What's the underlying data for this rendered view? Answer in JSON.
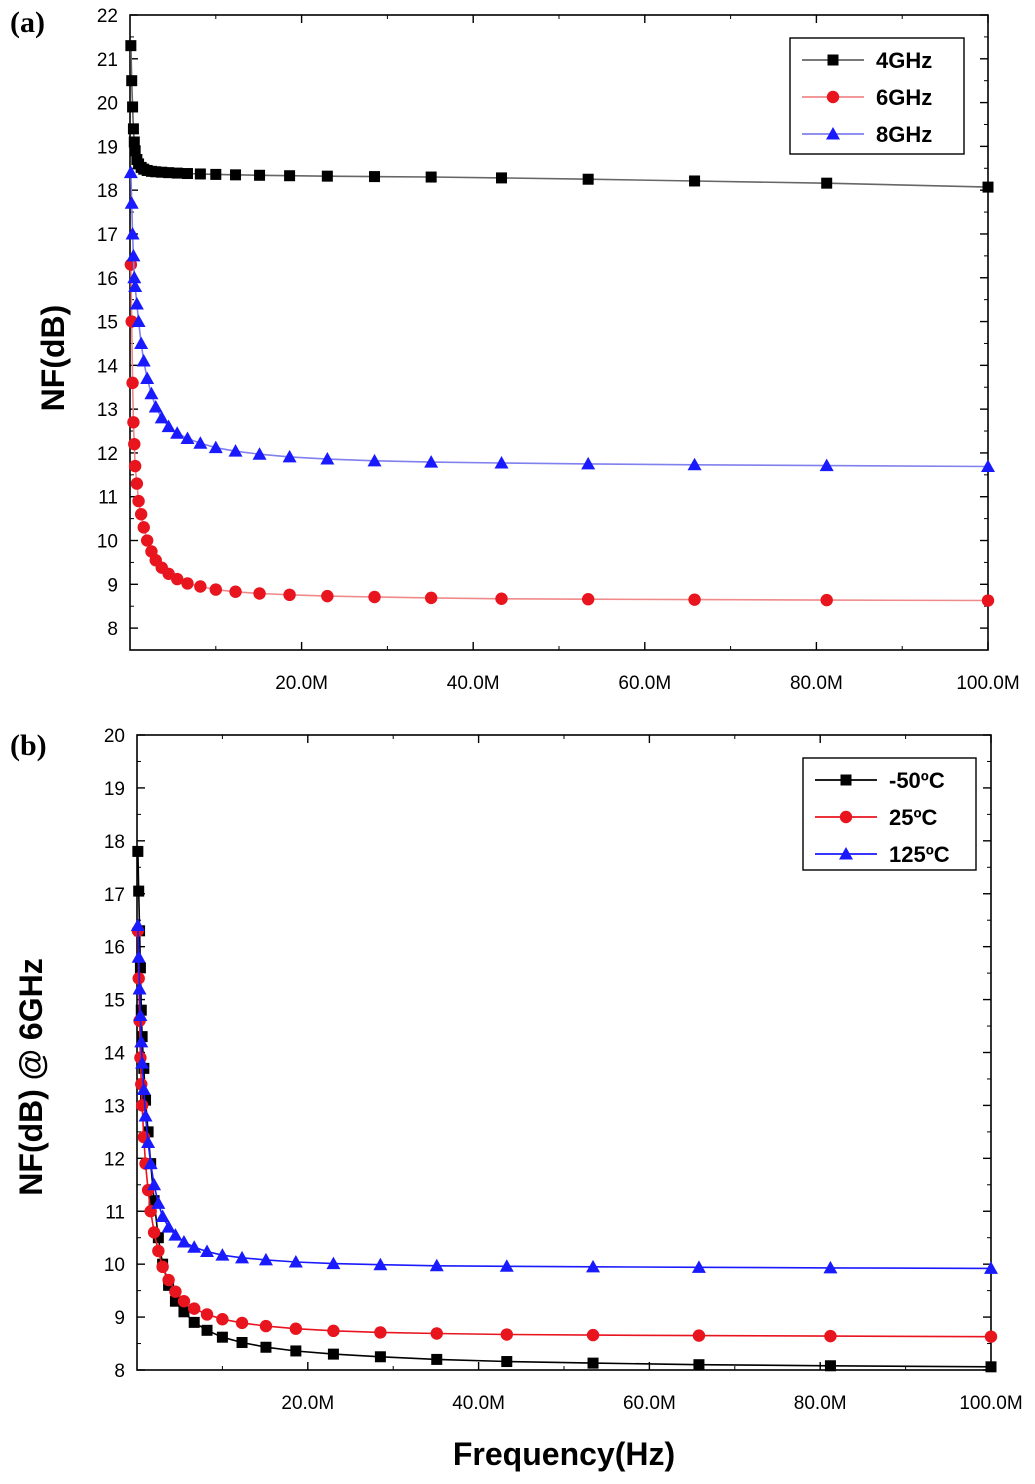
{
  "chart_data": [
    {
      "panel_label": "(a)",
      "type": "line",
      "title": "",
      "xlabel": "",
      "ylabel": "NF(dB)",
      "xlim": [
        0,
        100000000
      ],
      "ylim": [
        7.5,
        22
      ],
      "yticks": [
        8,
        9,
        10,
        11,
        12,
        13,
        14,
        15,
        16,
        17,
        18,
        19,
        20,
        21,
        22
      ],
      "xticks": [
        20000000,
        40000000,
        60000000,
        80000000,
        100000000
      ],
      "xtick_labels": [
        "20.0M",
        "40.0M",
        "60.0M",
        "80.0M",
        "100.0M"
      ],
      "legend_position": "top-right",
      "grid": false,
      "series": [
        {
          "name": "4GHz",
          "color": "#000000",
          "line_color": "#666666",
          "marker": "square",
          "x": [
            100000,
            200000,
            300000,
            400000,
            500000,
            600000,
            800000,
            1000000,
            1300000,
            1600000,
            2000000,
            2500000,
            3000000,
            3700000,
            4500000,
            5500000,
            6700000,
            8200000,
            10000000,
            12300000,
            15100000,
            18600000,
            23000000,
            28500000,
            35100000,
            43300000,
            53400000,
            65800000,
            81200000,
            100000000
          ],
          "y": [
            21.3,
            20.5,
            19.9,
            19.4,
            19.1,
            18.9,
            18.7,
            18.6,
            18.52,
            18.48,
            18.45,
            18.43,
            18.42,
            18.41,
            18.4,
            18.39,
            18.38,
            18.37,
            18.36,
            18.35,
            18.34,
            18.33,
            18.32,
            18.31,
            18.3,
            18.28,
            18.25,
            18.21,
            18.16,
            18.07
          ]
        },
        {
          "name": "6GHz",
          "color": "#e8141e",
          "line_color": "#f08a8a",
          "marker": "circle",
          "x": [
            100000,
            200000,
            300000,
            400000,
            500000,
            600000,
            800000,
            1000000,
            1300000,
            1600000,
            2000000,
            2500000,
            3000000,
            3700000,
            4500000,
            5500000,
            6700000,
            8200000,
            10000000,
            12300000,
            15100000,
            18600000,
            23000000,
            28500000,
            35100000,
            43300000,
            53400000,
            65800000,
            81200000,
            100000000
          ],
          "y": [
            16.3,
            15.0,
            13.6,
            12.7,
            12.2,
            11.7,
            11.3,
            10.9,
            10.6,
            10.3,
            10.0,
            9.75,
            9.55,
            9.38,
            9.24,
            9.12,
            9.02,
            8.95,
            8.88,
            8.83,
            8.79,
            8.76,
            8.73,
            8.71,
            8.69,
            8.67,
            8.66,
            8.65,
            8.64,
            8.63
          ]
        },
        {
          "name": "8GHz",
          "color": "#1a1aff",
          "line_color": "#8080ee",
          "marker": "triangle",
          "x": [
            100000,
            200000,
            300000,
            400000,
            500000,
            600000,
            800000,
            1000000,
            1300000,
            1600000,
            2000000,
            2500000,
            3000000,
            3700000,
            4500000,
            5500000,
            6700000,
            8200000,
            10000000,
            12300000,
            15100000,
            18600000,
            23000000,
            28500000,
            35100000,
            43300000,
            53400000,
            65800000,
            81200000,
            100000000
          ],
          "y": [
            18.4,
            17.7,
            17.0,
            16.5,
            16.0,
            15.8,
            15.4,
            15.0,
            14.5,
            14.1,
            13.7,
            13.35,
            13.05,
            12.8,
            12.6,
            12.45,
            12.33,
            12.22,
            12.12,
            12.04,
            11.97,
            11.91,
            11.86,
            11.82,
            11.79,
            11.77,
            11.75,
            11.73,
            11.71,
            11.69
          ]
        }
      ]
    },
    {
      "panel_label": "(b)",
      "type": "line",
      "title": "",
      "xlabel": "Frequency(Hz)",
      "ylabel": "NF(dB) @ 6GHz",
      "xlim": [
        0,
        100000000
      ],
      "ylim": [
        8,
        20
      ],
      "yticks": [
        8,
        9,
        10,
        11,
        12,
        13,
        14,
        15,
        16,
        17,
        18,
        19,
        20
      ],
      "xticks": [
        20000000,
        40000000,
        60000000,
        80000000,
        100000000
      ],
      "xtick_labels": [
        "20.0M",
        "40.0M",
        "60.0M",
        "80.0M",
        "100.0M"
      ],
      "legend_position": "top-right",
      "grid": false,
      "series": [
        {
          "name": "-50ºC",
          "color": "#000000",
          "line_color": "#000000",
          "marker": "square",
          "x": [
            100000,
            200000,
            300000,
            400000,
            500000,
            600000,
            800000,
            1000000,
            1300000,
            1600000,
            2000000,
            2500000,
            3000000,
            3700000,
            4500000,
            5500000,
            6700000,
            8200000,
            10000000,
            12300000,
            15100000,
            18600000,
            23000000,
            28500000,
            35100000,
            43300000,
            53400000,
            65800000,
            81200000,
            100000000
          ],
          "y": [
            17.8,
            17.05,
            16.3,
            15.6,
            14.8,
            14.3,
            13.7,
            13.1,
            12.5,
            11.9,
            11.2,
            10.5,
            10.0,
            9.6,
            9.3,
            9.1,
            8.9,
            8.75,
            8.62,
            8.52,
            8.43,
            8.36,
            8.3,
            8.25,
            8.2,
            8.16,
            8.13,
            8.1,
            8.08,
            8.06
          ]
        },
        {
          "name": "25ºC",
          "color": "#e8141e",
          "line_color": "#e8141e",
          "marker": "circle",
          "x": [
            100000,
            200000,
            300000,
            400000,
            500000,
            600000,
            800000,
            1000000,
            1300000,
            1600000,
            2000000,
            2500000,
            3000000,
            3700000,
            4500000,
            5500000,
            6700000,
            8200000,
            10000000,
            12300000,
            15100000,
            18600000,
            23000000,
            28500000,
            35100000,
            43300000,
            53400000,
            65800000,
            81200000,
            100000000
          ],
          "y": [
            16.3,
            15.4,
            14.6,
            13.9,
            13.4,
            13.0,
            12.4,
            11.9,
            11.4,
            11.0,
            10.6,
            10.25,
            9.95,
            9.7,
            9.48,
            9.3,
            9.16,
            9.05,
            8.96,
            8.89,
            8.83,
            8.78,
            8.74,
            8.71,
            8.69,
            8.67,
            8.66,
            8.65,
            8.64,
            8.63
          ]
        },
        {
          "name": "125ºC",
          "color": "#1a1aff",
          "line_color": "#1a1aff",
          "marker": "triangle",
          "x": [
            100000,
            200000,
            300000,
            400000,
            500000,
            600000,
            800000,
            1000000,
            1300000,
            1600000,
            2000000,
            2500000,
            3000000,
            3700000,
            4500000,
            5500000,
            6700000,
            8200000,
            10000000,
            12300000,
            15100000,
            18600000,
            23000000,
            28500000,
            35100000,
            43300000,
            53400000,
            65800000,
            81200000,
            100000000
          ],
          "y": [
            16.4,
            15.8,
            15.2,
            14.7,
            14.2,
            13.8,
            13.3,
            12.8,
            12.3,
            11.9,
            11.5,
            11.15,
            10.9,
            10.7,
            10.55,
            10.42,
            10.32,
            10.24,
            10.17,
            10.12,
            10.08,
            10.04,
            10.01,
            9.99,
            9.97,
            9.96,
            9.95,
            9.94,
            9.93,
            9.92
          ]
        }
      ]
    }
  ]
}
